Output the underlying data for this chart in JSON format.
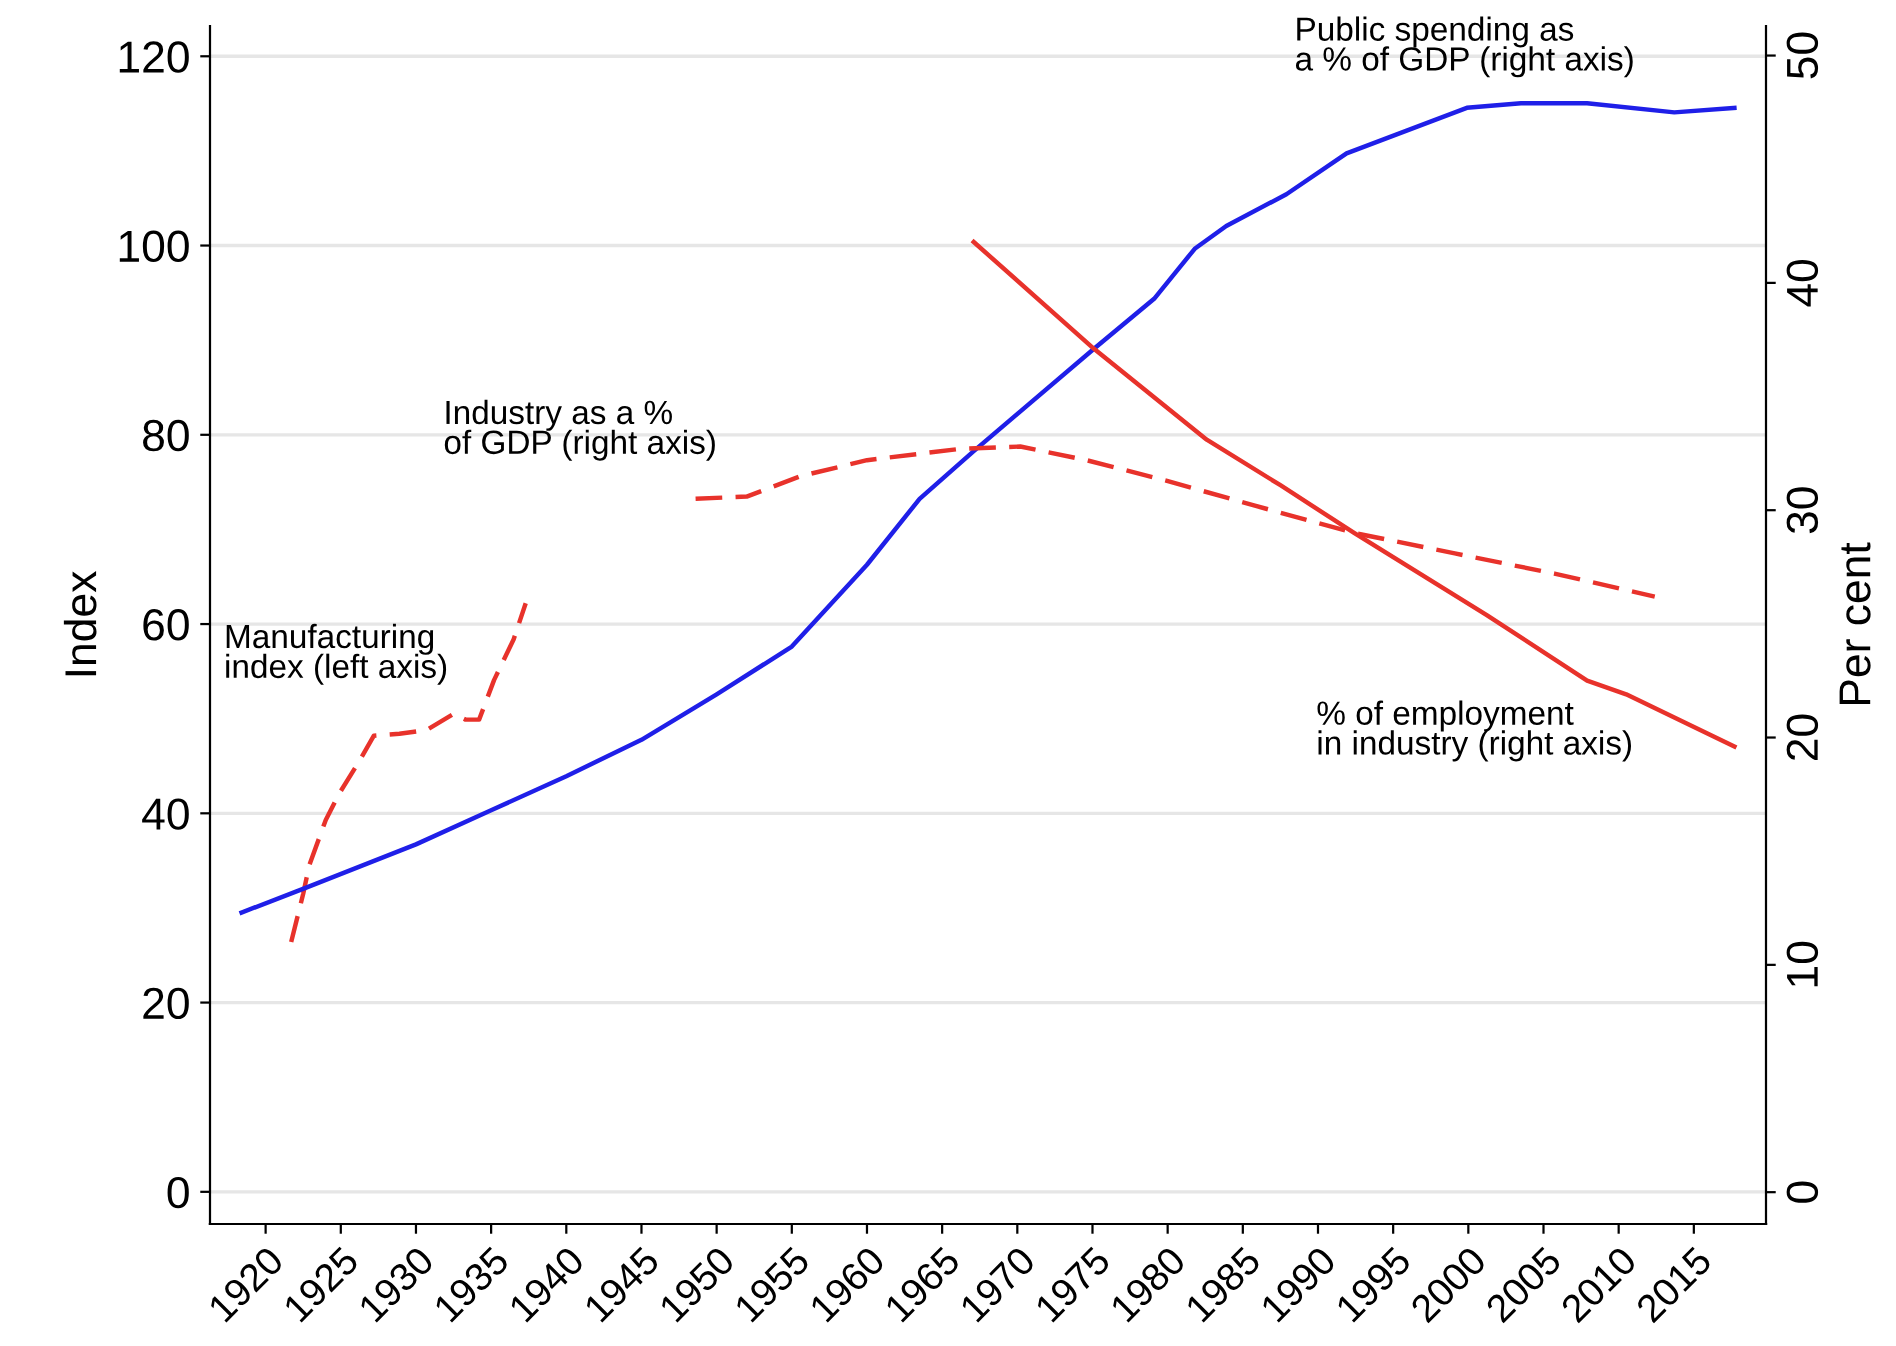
{
  "chart_data": {
    "type": "line",
    "ylabel": "Index",
    "y2label": "Per cent",
    "xlim": [
      1916.3,
      2019.8
    ],
    "xticks": [
      1920,
      1925,
      1930,
      1935,
      1940,
      1945,
      1950,
      1955,
      1960,
      1965,
      1970,
      1975,
      1980,
      1985,
      1990,
      1995,
      2000,
      2005,
      2010,
      2015
    ],
    "ylim": [
      -3.4,
      123.2
    ],
    "yticks": [
      0,
      20,
      40,
      60,
      80,
      100,
      120
    ],
    "y2lim": [
      -1.4,
      51.3
    ],
    "y2ticks": [
      0,
      10,
      20,
      30,
      40,
      50
    ],
    "grid": "y",
    "legend": false,
    "marker": "none",
    "series": [
      {
        "name": "Public spending as\na % of GDP (right axis)",
        "color": "#1f1fe8",
        "axis": "y2",
        "line_style": "solid",
        "x": [
          1918.4,
          1922.7,
          1930,
          1935,
          1940,
          1945,
          1950,
          1955,
          1960,
          1963.5,
          1967.1,
          1975.1,
          1979.1,
          1981.8,
          1983.9,
          1987.9,
          1991.9,
          1995.9,
          1999.9,
          2003.5,
          2007.9,
          2013.7,
          2017.7
        ],
        "values": [
          12.3,
          13.4,
          15.3,
          16.8,
          18.3,
          19.9,
          21.9,
          24.0,
          27.6,
          30.5,
          32.6,
          37.1,
          39.3,
          41.5,
          42.5,
          43.9,
          45.7,
          46.7,
          47.7,
          47.9,
          47.9,
          47.5,
          47.7
        ]
      },
      {
        "name": "Industry as a %\nof GDP (right axis)",
        "color": "#e8322b",
        "axis": "y2",
        "line_style": "dashed",
        "x": [
          1948.6,
          1952,
          1955.6,
          1960,
          1966.2,
          1970.2,
          1974.6,
          1979.9,
          1985.8,
          1992.4,
          1999.1,
          2005.8,
          2012.4
        ],
        "values": [
          30.5,
          30.6,
          31.5,
          32.2,
          32.7,
          32.8,
          32.2,
          31.3,
          30.2,
          29.0,
          28.1,
          27.2,
          26.2
        ]
      },
      {
        "name": "Manufacturing\nindex (left axis)",
        "color": "#e8322b",
        "axis": "y",
        "line_style": "dashed",
        "x": [
          1921.7,
          1922.5,
          1922.9,
          1924,
          1924.9,
          1926.3,
          1927.2,
          1928.9,
          1930.7,
          1932.5,
          1933.3,
          1934.2,
          1935.2,
          1936.5,
          1937.3
        ],
        "values": [
          26.4,
          31.5,
          34.5,
          39.3,
          42.1,
          45.7,
          48.2,
          48.4,
          48.8,
          50.5,
          49.9,
          49.9,
          54.1,
          58.4,
          62.2
        ]
      },
      {
        "name": "% of employment\nin industry (right axis)",
        "color": "#e8322b",
        "axis": "y2",
        "line_style": "solid",
        "x": [
          1967.1,
          1975.1,
          1982.6,
          1987.5,
          1992.4,
          2001.2,
          2007.9,
          2010.5,
          2017.7
        ],
        "values": [
          41.8,
          37.1,
          33.1,
          31.1,
          29.0,
          25.4,
          22.5,
          21.9,
          19.6
        ]
      }
    ]
  }
}
